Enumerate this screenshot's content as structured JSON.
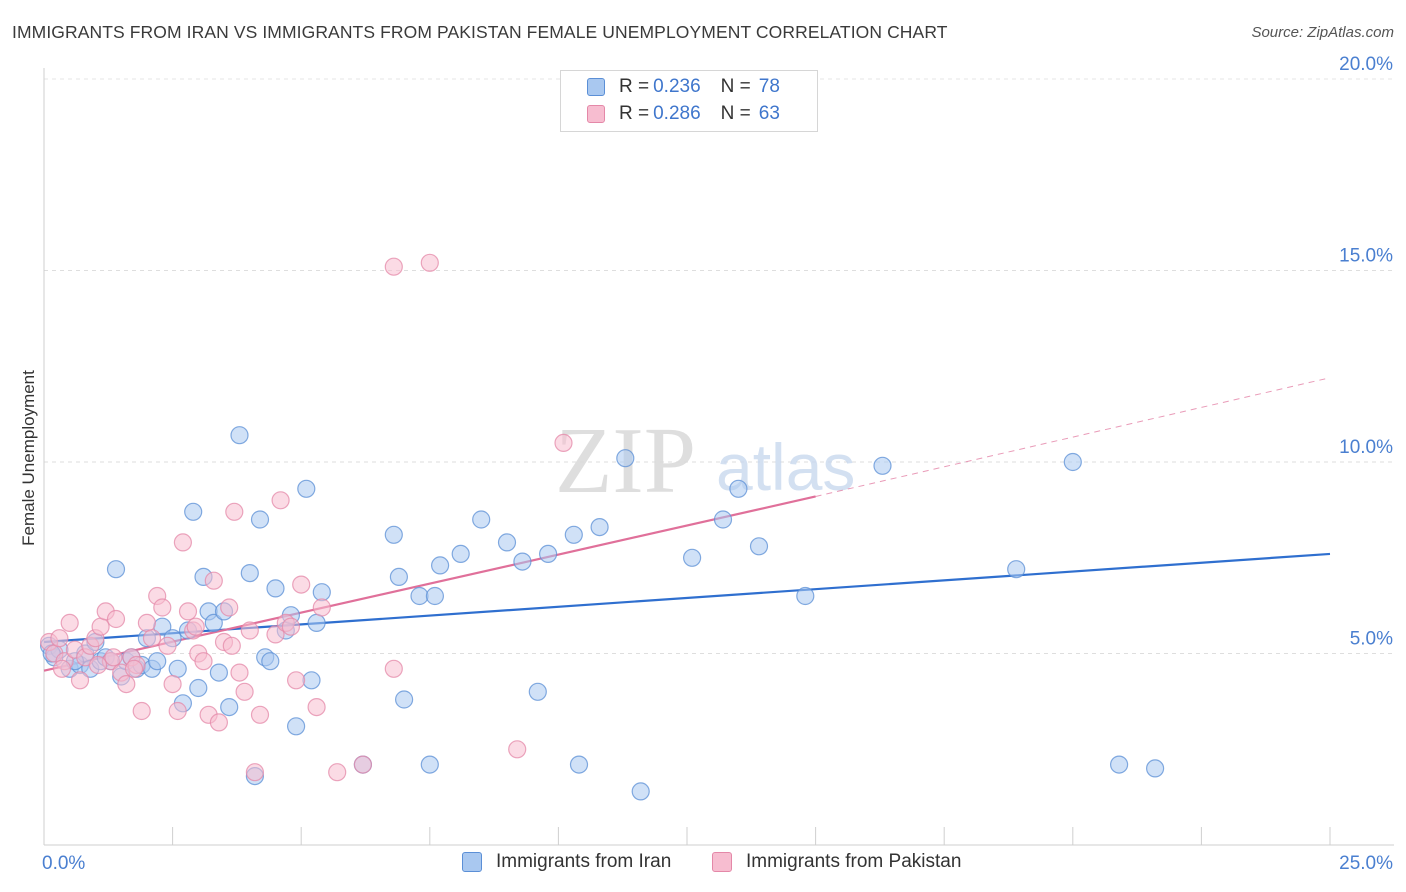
{
  "title": "IMMIGRANTS FROM IRAN VS IMMIGRANTS FROM PAKISTAN FEMALE UNEMPLOYMENT CORRELATION CHART",
  "source": "Source: ZipAtlas.com",
  "watermark": {
    "zip": "ZIP",
    "atlas": "atlas"
  },
  "legend_top": [
    {
      "r_label": "R =",
      "r_value": "0.236",
      "n_label": "N =",
      "n_value": "78"
    },
    {
      "r_label": "R =",
      "r_value": "0.286",
      "n_label": "N =",
      "n_value": "63"
    }
  ],
  "chart_data": {
    "type": "scatter",
    "title": "IMMIGRANTS FROM IRAN VS IMMIGRANTS FROM PAKISTAN FEMALE UNEMPLOYMENT CORRELATION CHART",
    "xlabel": "",
    "ylabel": "Female Unemployment",
    "xlim": [
      0,
      25
    ],
    "ylim": [
      0,
      20.5
    ],
    "x_tick_labels": [
      "0.0%",
      "25.0%"
    ],
    "y_tick_values": [
      5,
      10,
      15,
      20
    ],
    "y_tick_labels": [
      "5.0%",
      "10.0%",
      "15.0%",
      "20.0%"
    ],
    "legend_position": "bottom",
    "colors": {
      "iran_fill": "#a9c8f0",
      "iran_edge": "#5b8fd6",
      "iran_line": "#2f6fcf",
      "pakistan_fill": "#f7bdd0",
      "pakistan_edge": "#e488a8",
      "pakistan_line": "#e0709a"
    },
    "series": [
      {
        "name": "Immigrants from Iran",
        "r": 0.236,
        "n": 78,
        "trend": {
          "x0": 0,
          "y0": 5.3,
          "x1": 25,
          "y1": 7.6
        },
        "points": [
          [
            0.1,
            5.2
          ],
          [
            0.2,
            4.9
          ],
          [
            0.3,
            5.1
          ],
          [
            0.5,
            4.6
          ],
          [
            0.7,
            4.7
          ],
          [
            0.8,
            5.0
          ],
          [
            0.9,
            4.6
          ],
          [
            1.0,
            5.3
          ],
          [
            1.1,
            4.8
          ],
          [
            1.2,
            4.9
          ],
          [
            1.3,
            4.8
          ],
          [
            1.4,
            7.2
          ],
          [
            1.5,
            4.4
          ],
          [
            1.6,
            4.8
          ],
          [
            1.7,
            4.9
          ],
          [
            1.8,
            4.6
          ],
          [
            1.9,
            4.7
          ],
          [
            2.0,
            5.4
          ],
          [
            2.1,
            4.6
          ],
          [
            2.3,
            5.7
          ],
          [
            2.5,
            5.4
          ],
          [
            2.6,
            4.6
          ],
          [
            2.7,
            3.7
          ],
          [
            2.8,
            5.6
          ],
          [
            2.9,
            8.7
          ],
          [
            3.0,
            4.1
          ],
          [
            3.1,
            7.0
          ],
          [
            3.2,
            6.1
          ],
          [
            3.3,
            5.8
          ],
          [
            3.4,
            4.5
          ],
          [
            3.5,
            6.1
          ],
          [
            3.6,
            3.6
          ],
          [
            3.8,
            10.7
          ],
          [
            4.0,
            7.1
          ],
          [
            4.1,
            1.8
          ],
          [
            4.2,
            8.5
          ],
          [
            4.3,
            4.9
          ],
          [
            4.4,
            4.8
          ],
          [
            4.5,
            6.7
          ],
          [
            4.7,
            5.6
          ],
          [
            4.8,
            6.0
          ],
          [
            4.9,
            3.1
          ],
          [
            5.1,
            9.3
          ],
          [
            5.2,
            4.3
          ],
          [
            5.3,
            5.8
          ],
          [
            5.4,
            6.6
          ],
          [
            6.2,
            2.1
          ],
          [
            6.8,
            8.1
          ],
          [
            6.9,
            7.0
          ],
          [
            7.0,
            3.8
          ],
          [
            7.3,
            6.5
          ],
          [
            7.5,
            2.1
          ],
          [
            7.6,
            6.5
          ],
          [
            7.7,
            7.3
          ],
          [
            8.1,
            7.6
          ],
          [
            8.5,
            8.5
          ],
          [
            9.0,
            7.9
          ],
          [
            9.3,
            7.4
          ],
          [
            9.6,
            4.0
          ],
          [
            9.8,
            7.6
          ],
          [
            10.3,
            8.1
          ],
          [
            10.4,
            2.1
          ],
          [
            10.8,
            8.3
          ],
          [
            11.3,
            10.1
          ],
          [
            11.6,
            1.4
          ],
          [
            12.6,
            7.5
          ],
          [
            13.2,
            8.5
          ],
          [
            13.5,
            9.3
          ],
          [
            13.9,
            7.8
          ],
          [
            14.8,
            6.5
          ],
          [
            16.3,
            9.9
          ],
          [
            18.9,
            7.2
          ],
          [
            20.0,
            10.0
          ],
          [
            20.9,
            2.1
          ],
          [
            21.6,
            2.0
          ],
          [
            0.15,
            5.0
          ],
          [
            0.6,
            4.8
          ],
          [
            2.2,
            4.8
          ]
        ]
      },
      {
        "name": "Immigrants from Pakistan",
        "r": 0.286,
        "n": 63,
        "trend": {
          "x0": 0,
          "y0": 4.55,
          "x1": 15.0,
          "y1": 9.1,
          "dash_x1": 25,
          "dash_y1": 12.2
        },
        "points": [
          [
            0.1,
            5.3
          ],
          [
            0.2,
            5.0
          ],
          [
            0.3,
            5.4
          ],
          [
            0.4,
            4.8
          ],
          [
            0.5,
            5.8
          ],
          [
            0.6,
            5.1
          ],
          [
            0.7,
            4.3
          ],
          [
            0.8,
            4.9
          ],
          [
            0.9,
            5.2
          ],
          [
            1.0,
            5.4
          ],
          [
            1.1,
            5.7
          ],
          [
            1.2,
            6.1
          ],
          [
            1.3,
            4.8
          ],
          [
            1.4,
            5.9
          ],
          [
            1.5,
            4.5
          ],
          [
            1.6,
            4.2
          ],
          [
            1.7,
            4.9
          ],
          [
            1.8,
            4.7
          ],
          [
            1.9,
            3.5
          ],
          [
            2.0,
            5.8
          ],
          [
            2.1,
            5.4
          ],
          [
            2.2,
            6.5
          ],
          [
            2.3,
            6.2
          ],
          [
            2.4,
            5.2
          ],
          [
            2.5,
            4.2
          ],
          [
            2.6,
            3.5
          ],
          [
            2.7,
            7.9
          ],
          [
            2.8,
            6.1
          ],
          [
            2.9,
            5.6
          ],
          [
            3.0,
            5.0
          ],
          [
            3.1,
            4.8
          ],
          [
            3.2,
            3.4
          ],
          [
            3.3,
            6.9
          ],
          [
            3.4,
            3.2
          ],
          [
            3.5,
            5.3
          ],
          [
            3.6,
            6.2
          ],
          [
            3.7,
            8.7
          ],
          [
            3.8,
            4.5
          ],
          [
            3.9,
            4.0
          ],
          [
            4.0,
            5.6
          ],
          [
            4.1,
            1.9
          ],
          [
            4.2,
            3.4
          ],
          [
            4.5,
            5.5
          ],
          [
            4.6,
            9.0
          ],
          [
            4.7,
            5.8
          ],
          [
            4.8,
            5.7
          ],
          [
            4.9,
            4.3
          ],
          [
            5.0,
            6.8
          ],
          [
            5.3,
            3.6
          ],
          [
            5.4,
            6.2
          ],
          [
            5.7,
            1.9
          ],
          [
            6.2,
            2.1
          ],
          [
            6.8,
            4.6
          ],
          [
            6.8,
            15.1
          ],
          [
            7.5,
            15.2
          ],
          [
            9.2,
            2.5
          ],
          [
            10.1,
            10.5
          ],
          [
            1.05,
            4.7
          ],
          [
            1.75,
            4.6
          ],
          [
            2.95,
            5.7
          ],
          [
            3.65,
            5.2
          ],
          [
            0.35,
            4.6
          ],
          [
            1.35,
            4.9
          ]
        ]
      }
    ]
  },
  "legend_bottom": [
    "Immigrants from Iran",
    "Immigrants from Pakistan"
  ]
}
